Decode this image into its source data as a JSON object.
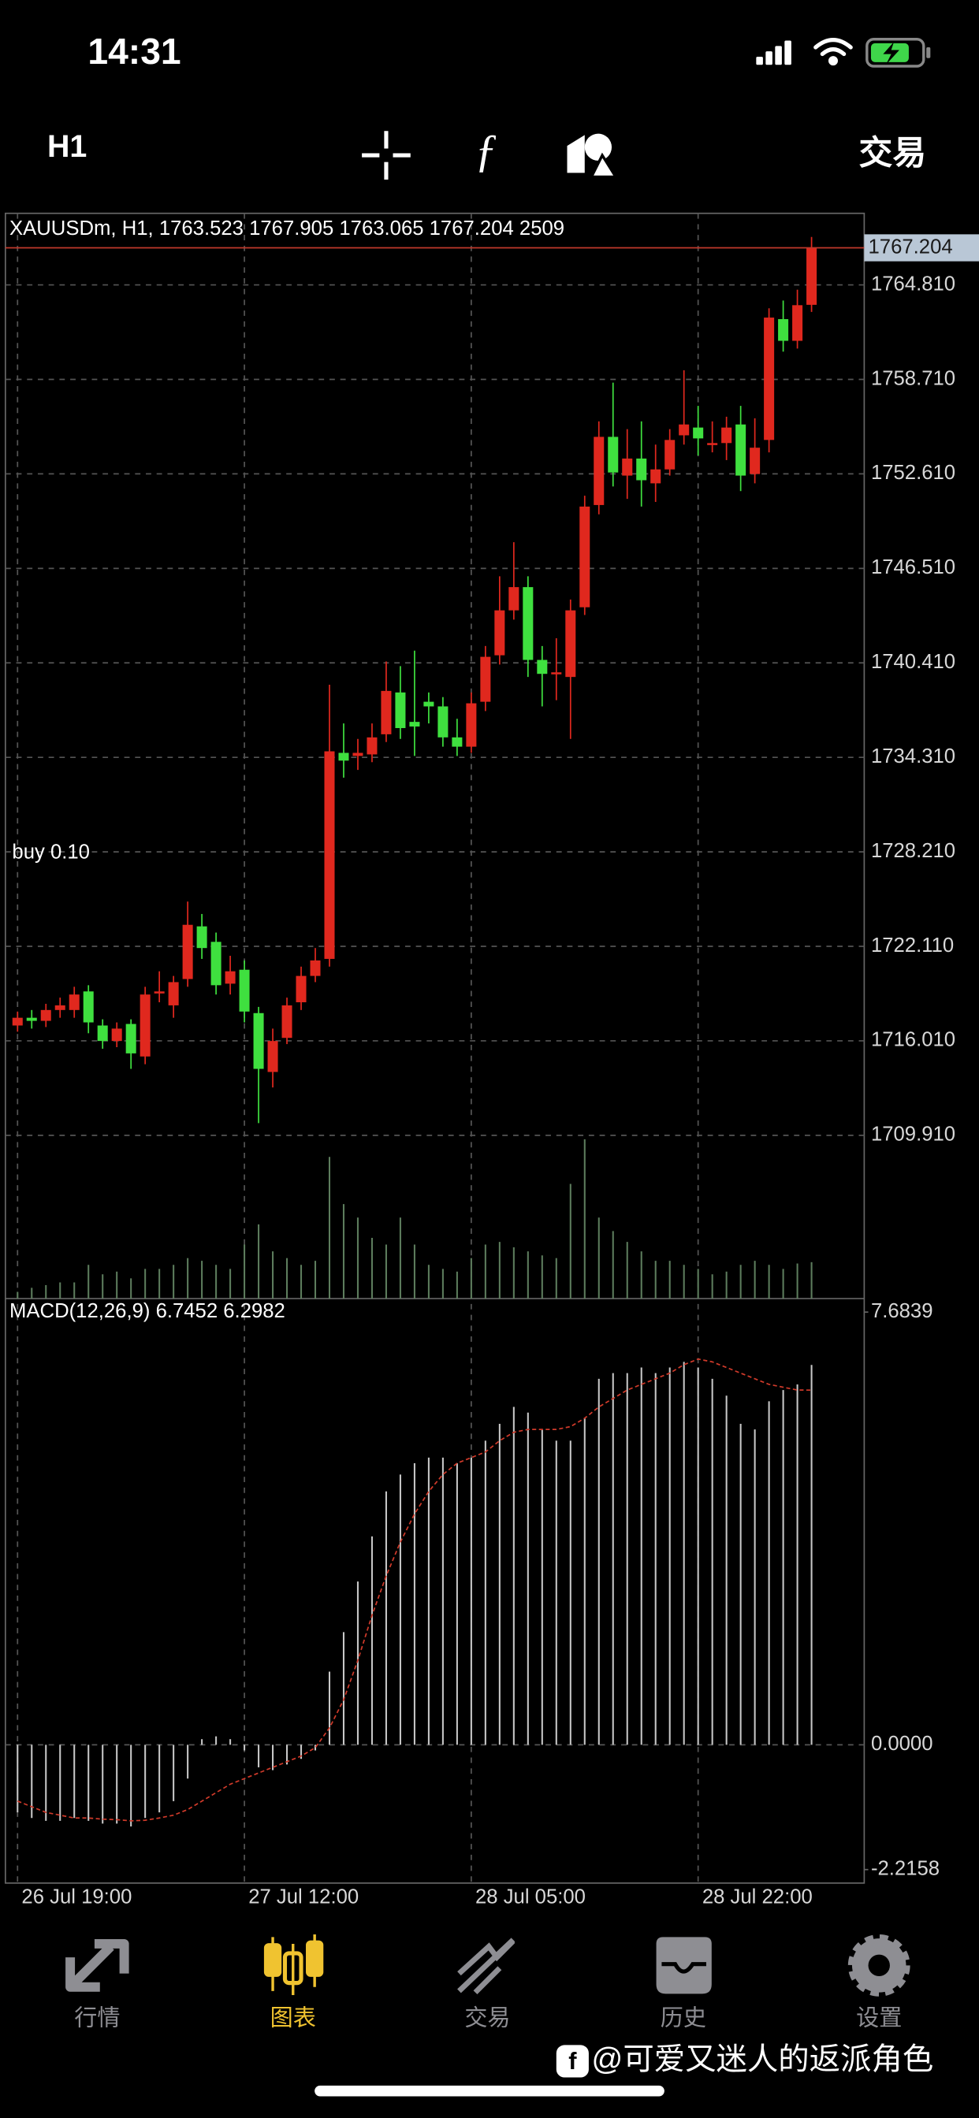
{
  "status_bar": {
    "time": "14:31"
  },
  "toolbar": {
    "timeframe": "H1",
    "trade": "交易"
  },
  "chart_data": [
    {
      "type": "candlestick",
      "title": "XAUUSDm, H1, 1763.523 1767.905 1763.065 1767.204 2509",
      "annotation": "buy 0.10",
      "categories": [
        "26 Jul 19:00",
        null,
        null,
        null,
        null,
        null,
        null,
        null,
        null,
        null,
        null,
        null,
        null,
        null,
        null,
        null,
        "27 Jul 12:00",
        null,
        null,
        null,
        null,
        null,
        null,
        null,
        null,
        null,
        null,
        null,
        null,
        null,
        null,
        null,
        "28 Jul 05:00",
        null,
        null,
        null,
        null,
        null,
        null,
        null,
        null,
        null,
        null,
        null,
        null,
        null,
        null,
        null,
        "28 Jul 22:00",
        null,
        null,
        null,
        null,
        null,
        null,
        null,
        null
      ],
      "open": [
        1717.0,
        1717.5,
        1717.3,
        1718.0,
        1718.0,
        1719.2,
        1717.0,
        1716.0,
        1717.1,
        1715.0,
        1719.1,
        1718.3,
        1720.0,
        1723.4,
        1722.4,
        1719.7,
        1720.6,
        1717.8,
        1714.0,
        1716.2,
        1718.5,
        1720.2,
        1721.3,
        1734.6,
        1734.4,
        1734.5,
        1735.8,
        1738.5,
        1736.6,
        1737.9,
        1737.6,
        1735.6,
        1735.0,
        1737.9,
        1740.9,
        1743.8,
        1745.3,
        1740.6,
        1739.7,
        1739.5,
        1744.0,
        1750.6,
        1755.0,
        1752.5,
        1753.6,
        1752.0,
        1752.9,
        1755.1,
        1755.6,
        1754.5,
        1754.6,
        1755.8,
        1752.6,
        1754.8,
        1762.6,
        1761.2,
        1763.523
      ],
      "high": [
        1717.9,
        1718.0,
        1718.4,
        1718.8,
        1719.5,
        1719.6,
        1717.4,
        1717.2,
        1717.4,
        1719.5,
        1720.5,
        1720.2,
        1725.0,
        1724.2,
        1723.0,
        1721.5,
        1721.2,
        1718.2,
        1716.8,
        1718.8,
        1720.8,
        1722.0,
        1739.0,
        1736.5,
        1735.5,
        1736.5,
        1740.5,
        1740.2,
        1741.2,
        1738.5,
        1738.2,
        1736.8,
        1738.5,
        1741.5,
        1746.0,
        1748.2,
        1746.0,
        1741.5,
        1742.0,
        1744.5,
        1751.2,
        1756.0,
        1758.5,
        1755.5,
        1756.0,
        1754.5,
        1755.5,
        1759.3,
        1757.0,
        1756.0,
        1756.3,
        1757.0,
        1756.2,
        1763.3,
        1763.8,
        1764.5,
        1767.905
      ],
      "low": [
        1716.6,
        1716.8,
        1716.9,
        1717.5,
        1717.5,
        1716.5,
        1715.5,
        1715.6,
        1714.2,
        1714.5,
        1718.5,
        1717.5,
        1719.5,
        1721.3,
        1719.0,
        1719.0,
        1717.2,
        1710.7,
        1713.0,
        1715.8,
        1718.0,
        1719.8,
        1720.8,
        1733.0,
        1733.5,
        1734.0,
        1735.3,
        1735.5,
        1734.4,
        1736.5,
        1735.0,
        1734.4,
        1734.6,
        1737.3,
        1740.3,
        1743.2,
        1739.5,
        1737.6,
        1738.0,
        1735.5,
        1743.5,
        1750.0,
        1751.8,
        1751.0,
        1750.5,
        1750.8,
        1752.5,
        1754.5,
        1753.8,
        1754.0,
        1753.5,
        1751.5,
        1752.0,
        1754.0,
        1760.5,
        1760.7,
        1763.065
      ],
      "close": [
        1717.5,
        1717.3,
        1718.0,
        1718.3,
        1719.0,
        1717.2,
        1716.0,
        1716.8,
        1715.2,
        1719.0,
        1719.2,
        1719.8,
        1723.5,
        1722.0,
        1719.6,
        1720.5,
        1717.9,
        1714.2,
        1716.0,
        1718.3,
        1720.2,
        1721.2,
        1734.7,
        1734.1,
        1734.6,
        1735.6,
        1738.6,
        1736.2,
        1736.3,
        1737.6,
        1735.6,
        1735.0,
        1737.8,
        1740.8,
        1743.8,
        1745.3,
        1740.6,
        1739.7,
        1739.8,
        1743.8,
        1750.5,
        1755.0,
        1752.7,
        1753.6,
        1752.2,
        1752.9,
        1754.8,
        1755.8,
        1754.9,
        1754.6,
        1755.6,
        1752.5,
        1754.3,
        1762.7,
        1761.2,
        1763.5,
        1767.204
      ],
      "volume": [
        465,
        744,
        930,
        1116,
        1116,
        2325,
        1674,
        1860,
        1395,
        2046,
        2046,
        2325,
        2790,
        2604,
        2325,
        2046,
        3720,
        5115,
        3255,
        2790,
        2325,
        2604,
        9765,
        6510,
        5580,
        4185,
        3720,
        5580,
        3720,
        2325,
        2046,
        1860,
        2790,
        3720,
        3906,
        3534,
        3255,
        2976,
        2790,
        7905,
        10974,
        5580,
        4650,
        3906,
        3255,
        2604,
        2604,
        2325,
        2046,
        1674,
        1860,
        2325,
        2604,
        2325,
        2046,
        2418,
        2509
      ],
      "ylim": [
        1699.37,
        1769.43
      ],
      "yticks": [
        {
          "value": 1764.81,
          "label": "1764.810"
        },
        {
          "value": 1758.71,
          "label": "1758.710"
        },
        {
          "value": 1752.61,
          "label": "1752.610"
        },
        {
          "value": 1746.51,
          "label": "1746.510"
        },
        {
          "value": 1740.41,
          "label": "1740.410"
        },
        {
          "value": 1734.31,
          "label": "1734.310"
        },
        {
          "value": 1728.21,
          "label": "1728.210"
        },
        {
          "value": 1722.11,
          "label": "1722.110"
        },
        {
          "value": 1716.01,
          "label": "1716.010"
        },
        {
          "value": 1709.91,
          "label": "1709.910"
        }
      ],
      "grid": true,
      "up_color": "#e0281e",
      "down_color": "#3fe03f",
      "volume_color": "#5d7d5d"
    },
    {
      "type": "macd",
      "title": "MACD(12,26,9) 6.7452 6.2982",
      "histogram": [
        -1.2,
        -1.3,
        -1.35,
        -1.35,
        -1.3,
        -1.35,
        -1.4,
        -1.4,
        -1.45,
        -1.3,
        -1.2,
        -1.0,
        -0.6,
        0.1,
        0.15,
        0.1,
        -0.1,
        -0.4,
        -0.45,
        -0.35,
        -0.25,
        -0.1,
        1.3,
        2.0,
        2.9,
        3.7,
        4.5,
        4.8,
        5.0,
        5.1,
        5.1,
        5.0,
        5.1,
        5.4,
        5.7,
        6.0,
        5.9,
        5.6,
        5.4,
        5.4,
        5.8,
        6.5,
        6.6,
        6.6,
        6.7,
        6.6,
        6.7,
        6.8,
        6.7,
        6.5,
        6.2,
        5.7,
        5.6,
        6.1,
        6.3,
        6.4,
        6.7452
      ],
      "signal": [
        -1.0,
        -1.1,
        -1.2,
        -1.25,
        -1.3,
        -1.3,
        -1.32,
        -1.33,
        -1.35,
        -1.34,
        -1.3,
        -1.25,
        -1.15,
        -1.0,
        -0.85,
        -0.7,
        -0.6,
        -0.5,
        -0.4,
        -0.3,
        -0.2,
        -0.05,
        0.3,
        0.8,
        1.5,
        2.3,
        3.0,
        3.6,
        4.1,
        4.5,
        4.8,
        5.0,
        5.1,
        5.2,
        5.4,
        5.55,
        5.6,
        5.6,
        5.6,
        5.65,
        5.8,
        6.0,
        6.15,
        6.3,
        6.4,
        6.5,
        6.6,
        6.75,
        6.85,
        6.8,
        6.7,
        6.6,
        6.5,
        6.4,
        6.35,
        6.3,
        6.2982
      ],
      "ylim": [
        -2.2158,
        7.6839
      ],
      "yticks": [
        7.6839,
        {
          "value": 0,
          "label": "0.0000"
        },
        -2.2158
      ],
      "color": "#c8c8c8",
      "signal_color": "#d03a2a"
    }
  ],
  "tabs": [
    {
      "label": "行情"
    },
    {
      "label": "图表",
      "active": true
    },
    {
      "label": "交易"
    },
    {
      "label": "历史"
    },
    {
      "label": "设置"
    }
  ],
  "watermark": "@可爱又迷人的返派角色"
}
